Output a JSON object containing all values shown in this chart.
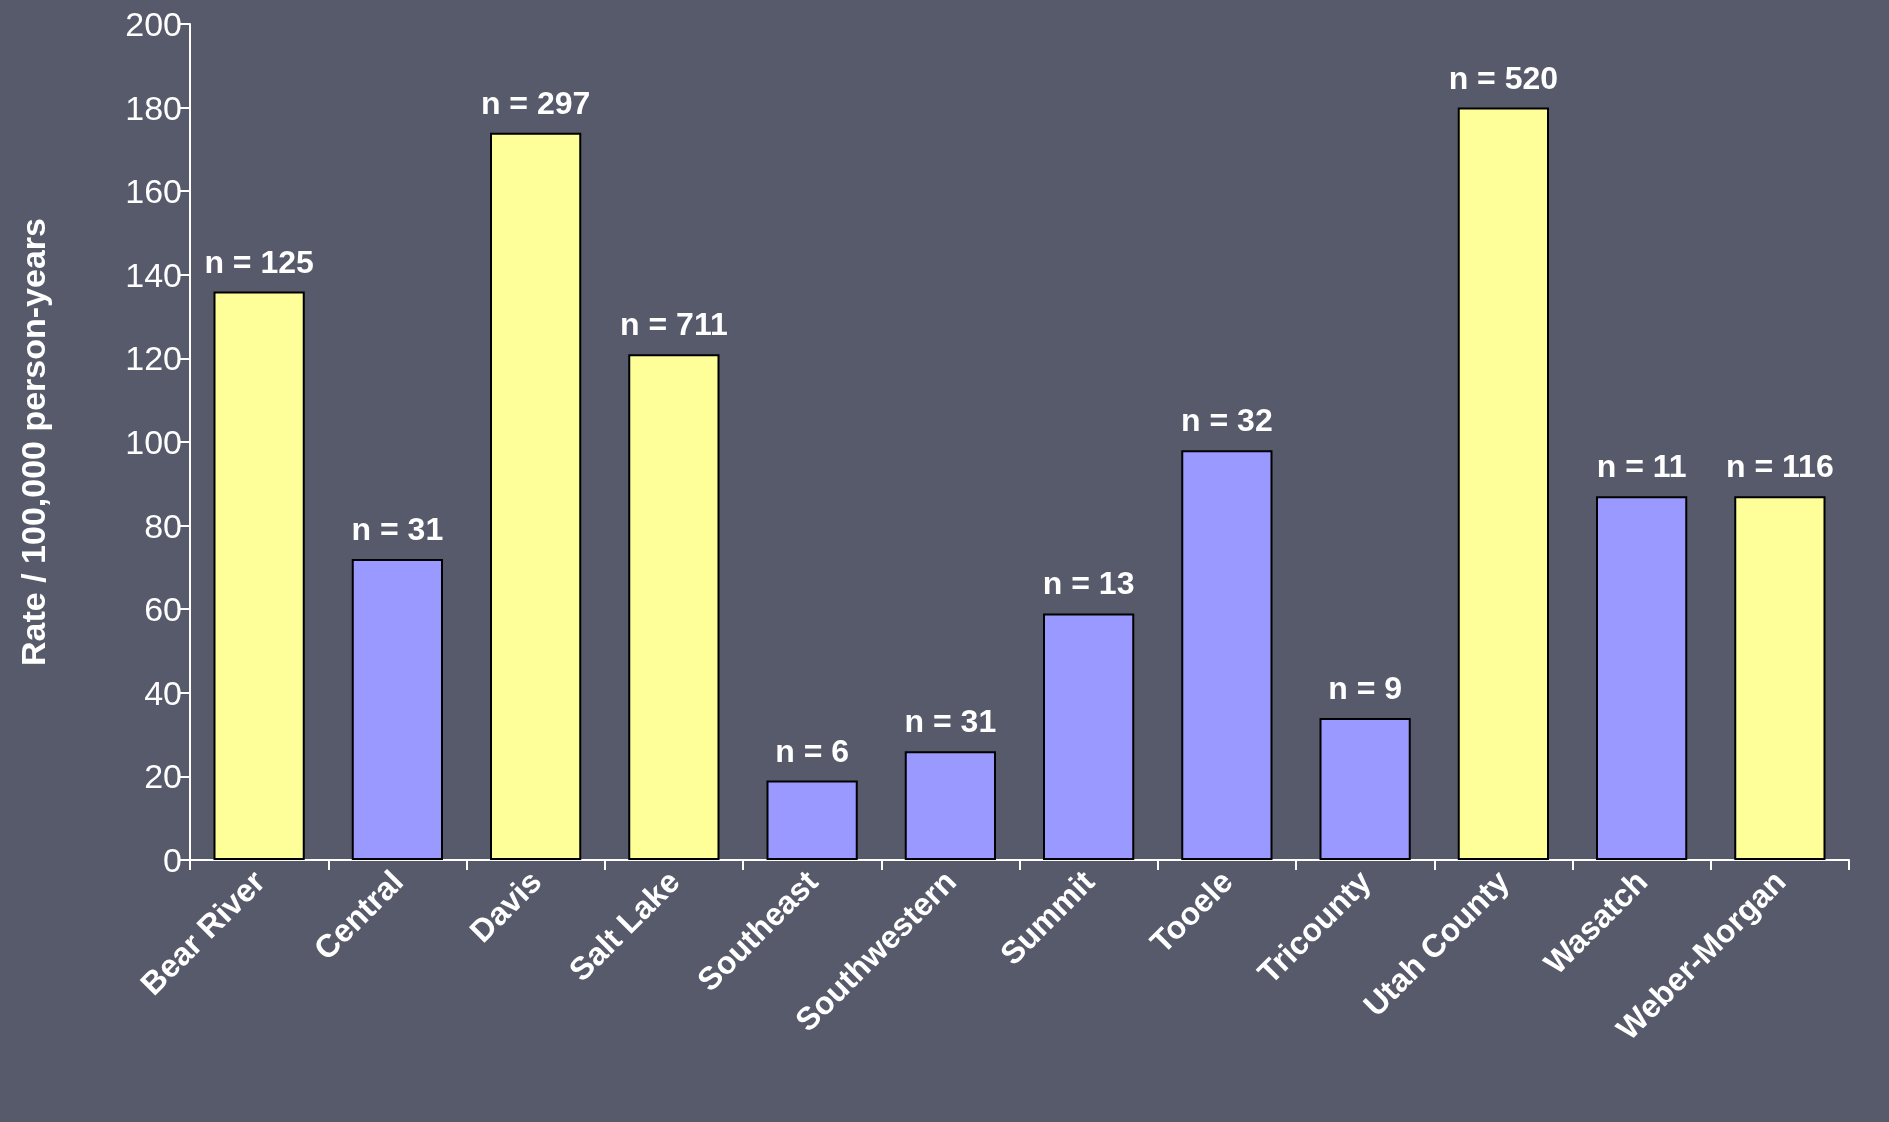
{
  "chart_data": {
    "type": "bar",
    "ylabel": "Rate / 100,000 person-years",
    "categories": [
      "Bear River",
      "Central",
      "Davis",
      "Salt Lake",
      "Southeast",
      "Southwestern",
      "Summit",
      "Tooele",
      "Tricounty",
      "Utah County",
      "Wasatch",
      "Weber-Morgan"
    ],
    "values": [
      136,
      72,
      174,
      121,
      19,
      26,
      59,
      98,
      34,
      180,
      87,
      87
    ],
    "colors": [
      "#ffff99",
      "#9999ff",
      "#ffff99",
      "#ffff99",
      "#9999ff",
      "#9999ff",
      "#9999ff",
      "#9999ff",
      "#9999ff",
      "#ffff99",
      "#9999ff",
      "#ffff99"
    ],
    "annotations": [
      {
        "text": "n = 125",
        "x": "Bear River",
        "y": 136
      },
      {
        "text": "n = 31",
        "x": "Central",
        "y": 72
      },
      {
        "text": "n = 297",
        "x": "Davis",
        "y": 174
      },
      {
        "text": "n = 711",
        "x": "Salt Lake",
        "y": 121
      },
      {
        "text": "n = 6",
        "x": "Southeast",
        "y": 19
      },
      {
        "text": "n = 31",
        "x": "Southwestern",
        "y": 26
      },
      {
        "text": "n = 13",
        "x": "Summit",
        "y": 59
      },
      {
        "text": "n = 32",
        "x": "Tooele",
        "y": 98
      },
      {
        "text": "n = 9",
        "x": "Tricounty",
        "y": 34
      },
      {
        "text": "n = 520",
        "x": "Utah County",
        "y": 180
      },
      {
        "text": "n = 11",
        "x": "Wasatch",
        "y": 87
      },
      {
        "text": "n = 116",
        "x": "Weber-Morgan",
        "y": 87
      }
    ],
    "ylim": [
      0,
      200
    ],
    "yticks": [
      0,
      20,
      40,
      60,
      80,
      100,
      120,
      140,
      160,
      180,
      200
    ]
  }
}
